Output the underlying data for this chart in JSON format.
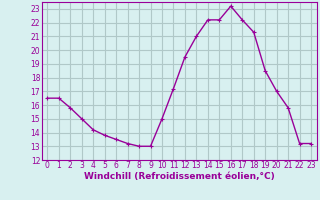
{
  "hours": [
    0,
    1,
    2,
    3,
    4,
    5,
    6,
    7,
    8,
    9,
    10,
    11,
    12,
    13,
    14,
    15,
    16,
    17,
    18,
    19,
    20,
    21,
    22,
    23
  ],
  "values": [
    16.5,
    16.5,
    15.8,
    15.0,
    14.2,
    13.8,
    13.5,
    13.2,
    13.0,
    13.0,
    15.0,
    17.2,
    19.5,
    21.0,
    22.2,
    22.2,
    23.2,
    22.2,
    21.3,
    18.5,
    17.0,
    15.8,
    13.2,
    13.2
  ],
  "line_color": "#990099",
  "marker": "+",
  "marker_size": 3,
  "bg_color": "#d8f0f0",
  "grid_color": "#b0c8c8",
  "xlabel": "Windchill (Refroidissement éolien,°C)",
  "ylim": [
    12,
    23.5
  ],
  "yticks": [
    12,
    13,
    14,
    15,
    16,
    17,
    18,
    19,
    20,
    21,
    22,
    23
  ],
  "xticks": [
    0,
    1,
    2,
    3,
    4,
    5,
    6,
    7,
    8,
    9,
    10,
    11,
    12,
    13,
    14,
    15,
    16,
    17,
    18,
    19,
    20,
    21,
    22,
    23
  ],
  "tick_fontsize": 5.5,
  "xlabel_fontsize": 6.5,
  "line_width": 1.0,
  "marker_edge_width": 0.8
}
